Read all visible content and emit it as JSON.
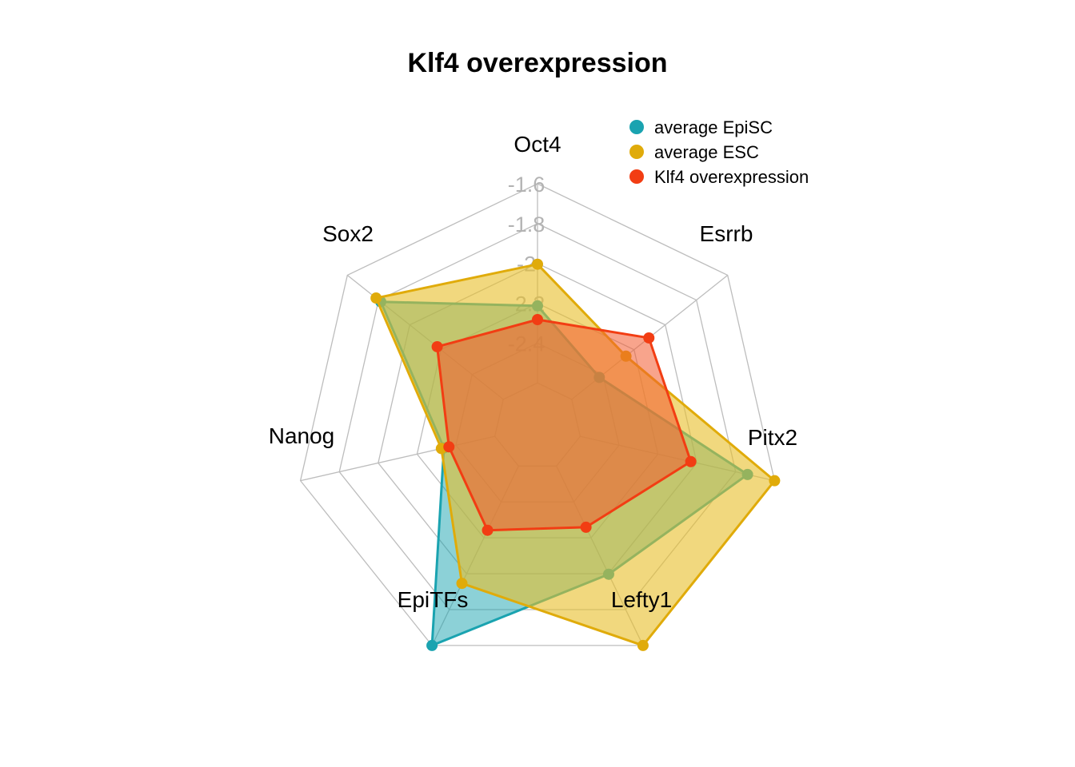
{
  "chart_data": {
    "type": "radar",
    "title": "Klf4 overexpression",
    "axes": [
      "Oct4",
      "Esrrb",
      "Pitx2",
      "Lefty1",
      "EpiTFs",
      "Nanog",
      "Sox2"
    ],
    "tick_labels": [
      "-1.6",
      "-1.8",
      "-2",
      "-2.2",
      "-2.4"
    ],
    "series": [
      {
        "name": "average EpiSC",
        "color": "#1aa3b0",
        "fill": "rgba(26,163,176,0.5)",
        "values": [
          0.387,
          0.177,
          0.861,
          0.603,
          1.0,
          0.262,
          0.786
        ]
      },
      {
        "name": "average ESC",
        "color": "#e0ab0a",
        "fill": "rgba(232,190,40,0.6)",
        "values": [
          0.596,
          0.348,
          1.0,
          1.0,
          0.654,
          0.275,
          0.816
        ]
      },
      {
        "name": "Klf4 overexpression",
        "color": "#f23d13",
        "fill": "rgba(242,90,45,0.55)",
        "values": [
          0.318,
          0.495,
          0.569,
          0.341,
          0.358,
          0.236,
          0.424
        ]
      }
    ],
    "legend_position": "top-right"
  }
}
